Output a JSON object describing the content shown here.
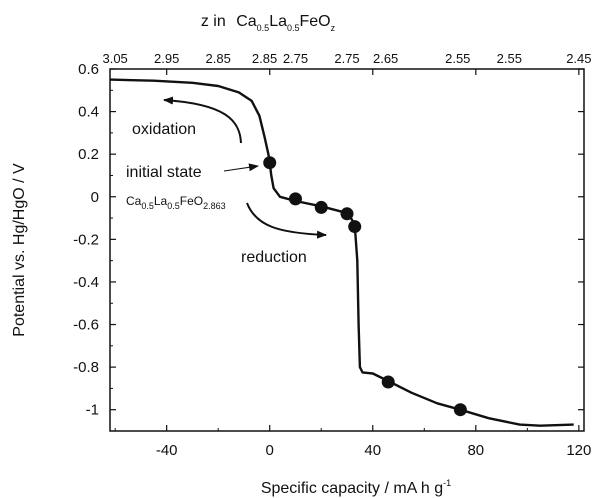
{
  "chart_data": {
    "type": "line",
    "xlabel": "Specific capacity / mA h g",
    "xlabel_sup": "-1",
    "ylabel": "Potential vs. Hg/HgO / V",
    "top_axis_label": {
      "prefix": "z in",
      "formula": [
        "Ca",
        "0.5",
        "La",
        "0.5",
        "FeO",
        "z"
      ]
    },
    "xlim": [
      -62,
      122
    ],
    "ylim": [
      -1.1,
      0.6
    ],
    "x_ticks": [
      -40,
      0,
      40,
      80,
      120
    ],
    "x_tick_labels": [
      "-40",
      "0",
      "40",
      "80",
      "120"
    ],
    "y_ticks": [
      0.6,
      0.4,
      0.2,
      0,
      -0.2,
      -0.4,
      -0.6,
      -0.8,
      -1
    ],
    "y_tick_labels": [
      "0.6",
      "0.4",
      "0.2",
      "0",
      "-0.2",
      "-0.4",
      "-0.6",
      "-0.8",
      "-1"
    ],
    "top_ticks": [
      -60,
      -40,
      -20,
      0,
      20,
      40,
      60,
      80,
      100,
      120
    ],
    "top_tick_labels": [
      "3.05",
      "2.95",
      "2.85",
      "2.85",
      "2.75",
      "2.75",
      "2.65",
      "2.55",
      "2.55",
      "2.45"
    ],
    "top_label_positions": [
      -60,
      -40,
      -20,
      -2,
      10,
      30,
      45,
      73,
      93,
      120
    ],
    "series": [
      {
        "curve": [
          [
            -62,
            0.55
          ],
          [
            -45,
            0.545
          ],
          [
            -30,
            0.535
          ],
          [
            -20,
            0.52
          ],
          [
            -12,
            0.49
          ],
          [
            -7,
            0.45
          ],
          [
            -4,
            0.38
          ],
          [
            -2,
            0.28
          ],
          [
            -0.5,
            0.2
          ],
          [
            0,
            0.16
          ],
          [
            0.6,
            0.1
          ],
          [
            1.5,
            0.04
          ],
          [
            4,
            0.0
          ],
          [
            10,
            -0.02
          ],
          [
            20,
            -0.045
          ],
          [
            28,
            -0.07
          ],
          [
            31,
            -0.09
          ],
          [
            33,
            -0.13
          ],
          [
            34,
            -0.3
          ],
          [
            34.5,
            -0.6
          ],
          [
            35,
            -0.8
          ],
          [
            36,
            -0.825
          ],
          [
            40,
            -0.83
          ],
          [
            46,
            -0.865
          ],
          [
            55,
            -0.92
          ],
          [
            65,
            -0.97
          ],
          [
            74,
            -1.0
          ],
          [
            85,
            -1.04
          ],
          [
            97,
            -1.07
          ],
          [
            105,
            -1.075
          ],
          [
            118,
            -1.07
          ]
        ],
        "points": [
          [
            0,
            0.16
          ],
          [
            10,
            -0.01
          ],
          [
            20,
            -0.05
          ],
          [
            30,
            -0.08
          ],
          [
            33,
            -0.14
          ],
          [
            46,
            -0.87
          ],
          [
            74,
            -1.0
          ]
        ]
      }
    ],
    "annotations": {
      "oxidation": "oxidation",
      "initial_state": "initial state",
      "initial_formula": [
        "Ca",
        "0.5",
        "La",
        "0.5",
        "FeO",
        "2.863"
      ],
      "reduction": "reduction"
    },
    "grid": false
  }
}
